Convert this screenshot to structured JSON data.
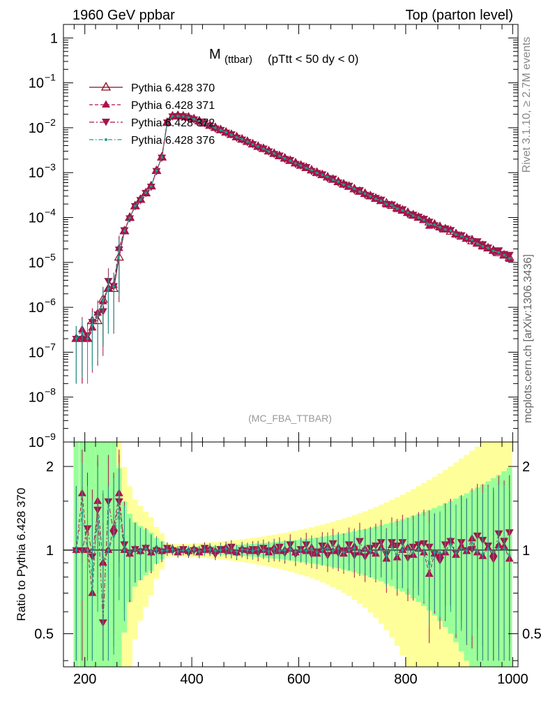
{
  "header": {
    "left": "1960 GeV ppbar",
    "right": "Top (parton level)"
  },
  "side": {
    "rivet": "Rivet 3.1.10, ≥ 2.7M events",
    "mcplots": "mcplots.cern.ch [arXiv:1306.3436]"
  },
  "chart_data": {
    "type": "line",
    "title": "M",
    "title_sub": "(ttbar)",
    "title_cut": "(pTtt < 50 dy < 0)",
    "watermark": "(MC_FBA_TTBAR)",
    "ratio_ylabel": "Ratio to Pythia 6.428 370",
    "xlim": [
      160,
      1010
    ],
    "xticks": [
      200,
      400,
      600,
      800,
      1000
    ],
    "xtick_labels": [
      "200",
      "400",
      "600",
      "800",
      "1000"
    ],
    "main_yscale": "log",
    "main_ylim": [
      1e-09,
      2
    ],
    "main_yticks": [
      {
        "value": 1,
        "base": "1",
        "exp": ""
      },
      {
        "value": 0.1,
        "base": "10",
        "exp": "−1"
      },
      {
        "value": 0.01,
        "base": "10",
        "exp": "−2"
      },
      {
        "value": 0.001,
        "base": "10",
        "exp": "−3"
      },
      {
        "value": 0.0001,
        "base": "10",
        "exp": "−4"
      },
      {
        "value": 1e-05,
        "base": "10",
        "exp": "−5"
      },
      {
        "value": 1e-06,
        "base": "10",
        "exp": "−6"
      },
      {
        "value": 1e-07,
        "base": "10",
        "exp": "−7"
      },
      {
        "value": 1e-08,
        "base": "10",
        "exp": "−8"
      },
      {
        "value": 1e-09,
        "base": "10",
        "exp": "−9"
      }
    ],
    "ratio_yscale": "log",
    "ratio_ylim": [
      0.38,
      2.45
    ],
    "ratio_yticks": [
      {
        "value": 2,
        "label": "2"
      },
      {
        "value": 1,
        "label": "1"
      },
      {
        "value": 0.5,
        "label": "0.5"
      }
    ],
    "legend_position": "top-left",
    "series": [
      {
        "name": "Pythia 6.428 370",
        "color": "#8b0a1f",
        "marker": "triangle-up-open",
        "dash": "solid"
      },
      {
        "name": "Pythia 6.428 371",
        "color": "#b01050",
        "marker": "triangle-up",
        "dash": "dashed"
      },
      {
        "name": "Pythia 6.428 372",
        "color": "#a0164a",
        "marker": "triangle-down",
        "dash": "dashdot"
      },
      {
        "name": "Pythia 6.428 376",
        "color": "#1e9e8e",
        "marker": "dot",
        "dash": "dashdot"
      }
    ],
    "x": [
      184,
      195,
      205,
      214,
      224,
      234,
      244,
      254,
      264,
      274,
      284,
      294,
      304,
      314,
      324,
      334,
      344,
      354,
      364,
      374,
      384,
      394,
      404,
      414,
      424,
      434,
      444,
      454,
      464,
      474,
      484,
      494,
      504,
      514,
      524,
      534,
      544,
      554,
      564,
      574,
      584,
      594,
      604,
      614,
      624,
      634,
      644,
      654,
      664,
      674,
      684,
      694,
      704,
      714,
      724,
      734,
      744,
      754,
      764,
      774,
      784,
      794,
      804,
      814,
      824,
      834,
      844,
      854,
      864,
      874,
      884,
      894,
      904,
      914,
      924,
      934,
      944,
      954,
      964,
      974,
      984,
      994
    ],
    "reference_values": [
      2e-07,
      2e-07,
      2e-07,
      5e-07,
      5e-07,
      1.5e-06,
      2.6e-06,
      2.6e-06,
      1.3e-05,
      5e-05,
      0.0001,
      0.00018,
      0.00025,
      0.00035,
      0.0005,
      0.0011,
      0.0022,
      0.013,
      0.018,
      0.0185,
      0.018,
      0.017,
      0.0155,
      0.014,
      0.0125,
      0.0112,
      0.01,
      0.0089,
      0.0079,
      0.007,
      0.0062,
      0.0055,
      0.0049,
      0.0043,
      0.0038,
      0.0034,
      0.003,
      0.00265,
      0.00235,
      0.00208,
      0.00184,
      0.00163,
      0.00144,
      0.00128,
      0.00113,
      0.001,
      0.00089,
      0.00079,
      0.0007,
      0.00062,
      0.00055,
      0.00049,
      0.00043,
      0.00038,
      0.00034,
      0.0003,
      0.000265,
      0.000235,
      0.000208,
      0.000184,
      0.000163,
      0.000144,
      0.000128,
      0.000113,
      0.0001,
      8.9e-05,
      7.9e-05,
      7e-05,
      6.2e-05,
      5.5e-05,
      4.9e-05,
      4.3e-05,
      3.8e-05,
      3.4e-05,
      3e-05,
      2.65e-05,
      2.35e-05,
      2.08e-05,
      1.84e-05,
      1.63e-05,
      1.44e-05,
      1.28e-05
    ],
    "ratios": {
      "Pythia 6.428 371": [
        1,
        1.6,
        1,
        0.7,
        1.5,
        0.9,
        1,
        1.2,
        1.6,
        1,
        0.97,
        1.01,
        0.99,
        1.02,
        0.98,
        1.01,
        0.99,
        1,
        1.01,
        0.98,
        1,
        0.99,
        1.01,
        0.98,
        1,
        1.01,
        0.99,
        1,
        1.02,
        0.99,
        0.98,
        1.01,
        1,
        0.99,
        1.01,
        1,
        0.98,
        1.02,
        0.99,
        1,
        1.01,
        0.98,
        1,
        0.99,
        1.02,
        0.97,
        1,
        1.03,
        0.99,
        1.02,
        0.97,
        1,
        1.03,
        0.98,
        1.01,
        0.99,
        0.97,
        1.02,
        0.93,
        1.04,
        0.94,
        1,
        1.02,
        0.96,
        1.01,
        0.98,
        0.82,
        0.97,
        0.96,
        0.98,
        1.08,
        0.96,
        1.03,
        0.99,
        1.1,
        0.98,
        0.95,
        1.02,
        0.97,
        1.04,
        1.03,
        0.93
      ],
      "Pythia 6.428 372": [
        1,
        1,
        1.2,
        0.95,
        1.4,
        0.55,
        1.5,
        1.15,
        1.5,
        1.05,
        0.97,
        1.01,
        0.99,
        1.02,
        0.98,
        1,
        0.99,
        1.02,
        1,
        0.99,
        1.01,
        0.98,
        1,
        0.99,
        1.02,
        1,
        0.97,
        1.01,
        0.99,
        1.03,
        0.98,
        1,
        0.99,
        1.01,
        0.98,
        1.02,
        1,
        0.99,
        1.03,
        0.98,
        1.05,
        0.97,
        1.01,
        1.05,
        0.97,
        0.99,
        1.04,
        0.96,
        1.06,
        0.98,
        1,
        1.05,
        0.96,
        1.08,
        0.95,
        1.02,
        1.04,
        1.07,
        0.97,
        1.07,
        1.04,
        1.07,
        0.94,
        1.03,
        1.05,
        1.06,
        1.03,
        0.97,
        0.92,
        1.05,
        1.08,
        0.98,
        1.07,
        1,
        1.01,
        1.13,
        1.09,
        1.04,
        0.93,
        1.15,
        1.08,
        1.16
      ]
    }
  }
}
